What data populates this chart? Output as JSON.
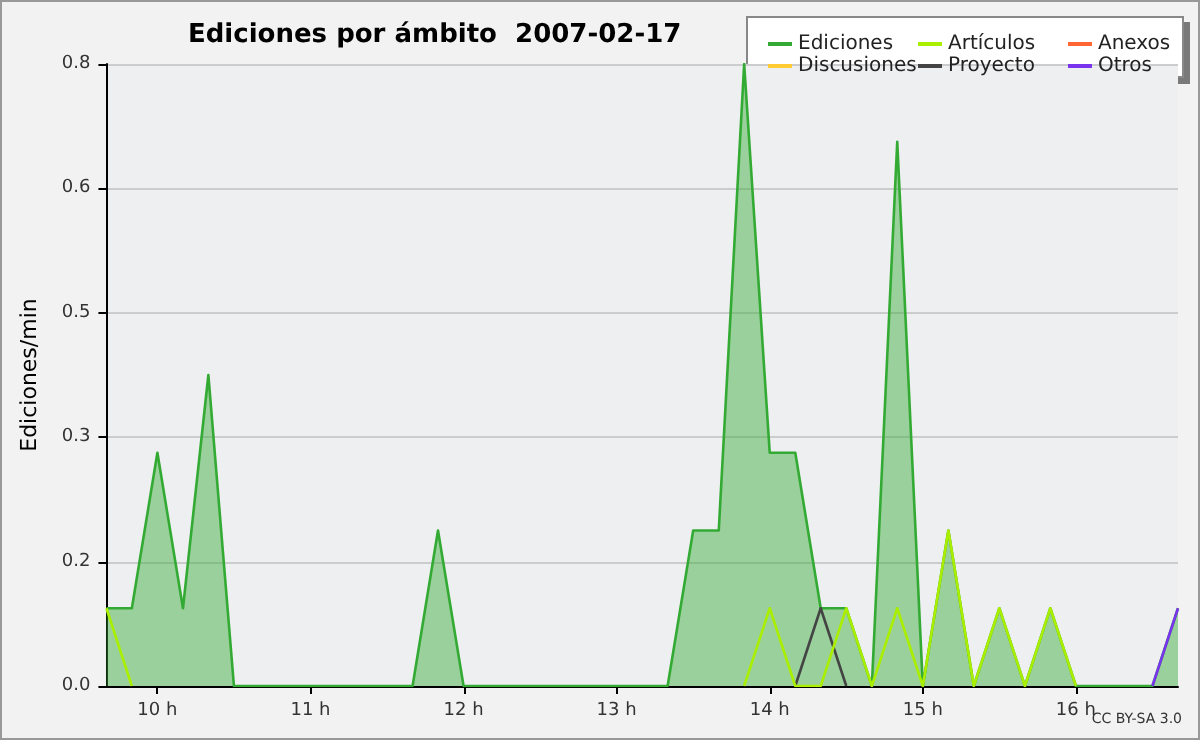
{
  "chart_data": {
    "type": "line",
    "title": "Ediciones por ámbito  2007-02-17",
    "ylabel": "Ediciones/min",
    "annotations": [
      "CC BY-SA 3.0"
    ],
    "x": [
      9.667,
      9.833,
      10,
      10.167,
      10.333,
      10.5,
      10.667,
      10.833,
      11,
      11.167,
      11.333,
      11.5,
      11.667,
      11.833,
      12,
      12.167,
      12.333,
      12.5,
      12.667,
      12.833,
      13,
      13.167,
      13.333,
      13.5,
      13.667,
      13.833,
      14,
      14.167,
      14.333,
      14.5,
      14.667,
      14.833,
      15,
      15.167,
      15.333,
      15.5,
      15.667,
      15.833,
      16,
      16.167,
      16.333,
      16.5,
      16.667
    ],
    "series": [
      {
        "name": "Ediciones",
        "type": "area",
        "color": "#33aa33",
        "values": [
          0.1,
          0.1,
          0.3,
          0.1,
          0.4,
          0,
          0,
          0,
          0,
          0,
          0,
          0,
          0,
          0.2,
          0,
          0,
          0,
          0,
          0,
          0,
          0,
          0,
          0,
          0.2,
          0.2,
          0.8,
          0.3,
          0.3,
          0.1,
          0.1,
          0,
          0.7,
          0,
          0.2,
          0,
          0.1,
          0,
          0.1,
          0,
          0,
          0,
          0,
          0.1
        ]
      },
      {
        "name": "Discusiones",
        "color": "#ffcc33",
        "values": [
          null,
          null,
          null,
          null,
          null,
          null,
          null,
          null,
          null,
          null,
          null,
          null,
          null,
          null,
          null,
          null,
          null,
          null,
          null,
          null,
          null,
          null,
          null,
          null,
          null,
          null,
          null,
          null,
          null,
          null,
          null,
          null,
          null,
          null,
          null,
          null,
          null,
          null,
          null,
          null,
          null,
          null,
          null
        ]
      },
      {
        "name": "Artículos",
        "color": "#aaee00",
        "values": [
          0.1,
          0,
          null,
          null,
          null,
          null,
          null,
          null,
          null,
          null,
          null,
          null,
          null,
          null,
          null,
          null,
          null,
          null,
          null,
          null,
          null,
          null,
          null,
          null,
          null,
          0,
          0.1,
          0,
          0,
          0.1,
          0,
          0.1,
          0,
          0.2,
          0,
          0.1,
          0,
          0.1,
          0,
          null,
          null,
          null,
          null
        ]
      },
      {
        "name": "Proyecto",
        "color": "#444444",
        "values": [
          null,
          null,
          null,
          null,
          null,
          null,
          null,
          null,
          null,
          null,
          null,
          null,
          null,
          null,
          null,
          null,
          null,
          null,
          null,
          null,
          null,
          null,
          null,
          null,
          null,
          null,
          null,
          0,
          0.1,
          0,
          null,
          null,
          null,
          null,
          null,
          null,
          null,
          null,
          null,
          null,
          null,
          null,
          null
        ]
      },
      {
        "name": "Anexos",
        "color": "#ff6633",
        "values": [
          null,
          null,
          null,
          null,
          null,
          null,
          null,
          null,
          null,
          null,
          null,
          null,
          null,
          null,
          null,
          null,
          null,
          null,
          null,
          null,
          null,
          null,
          null,
          null,
          null,
          null,
          null,
          null,
          null,
          null,
          null,
          null,
          null,
          null,
          null,
          null,
          null,
          null,
          null,
          null,
          null,
          null,
          null
        ]
      },
      {
        "name": "Otros",
        "color": "#7733ee",
        "values": [
          null,
          null,
          null,
          null,
          null,
          null,
          null,
          null,
          null,
          null,
          null,
          null,
          null,
          null,
          null,
          null,
          null,
          null,
          null,
          null,
          null,
          null,
          null,
          null,
          null,
          null,
          null,
          null,
          null,
          null,
          null,
          null,
          null,
          null,
          null,
          null,
          null,
          null,
          null,
          null,
          null,
          0,
          0.1
        ]
      }
    ],
    "xlim": [
      9.667,
      16.667
    ],
    "xticks": [
      {
        "value": 10,
        "label": "10 h"
      },
      {
        "value": 11,
        "label": "11 h"
      },
      {
        "value": 12,
        "label": "12 h"
      },
      {
        "value": 13,
        "label": "13 h"
      },
      {
        "value": 14,
        "label": "14 h"
      },
      {
        "value": 15,
        "label": "15 h"
      },
      {
        "value": 16,
        "label": "16 h"
      }
    ],
    "ylim": [
      0,
      0.8
    ],
    "yticks": [
      {
        "value": 0,
        "label": "0.0"
      },
      {
        "value": 0.16,
        "label": "0.2"
      },
      {
        "value": 0.32,
        "label": "0.3"
      },
      {
        "value": 0.48,
        "label": "0.5"
      },
      {
        "value": 0.64,
        "label": "0.6"
      },
      {
        "value": 0.8,
        "label": "0.8"
      }
    ],
    "grid": "y",
    "legend": "top right",
    "marker": "none",
    "line_style": "solid"
  }
}
